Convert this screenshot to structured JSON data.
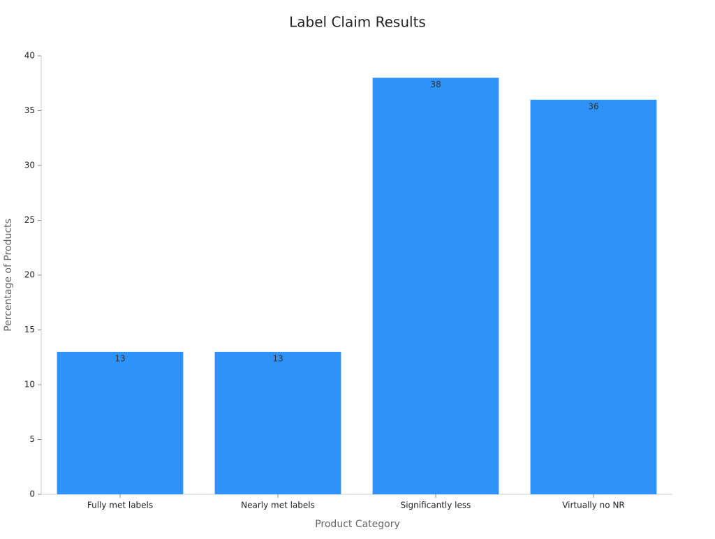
{
  "chart_data": {
    "type": "bar",
    "title": "Label Claim Results",
    "x_label": "Product Category",
    "y_label": "Percentage of Products",
    "categories": [
      "Fully met labels",
      "Nearly met labels",
      "Significantly less",
      "Virtually no NR"
    ],
    "values": [
      13,
      13,
      38,
      36
    ],
    "color": "#2e92f8",
    "ylim": [
      0,
      40
    ],
    "yticks": [
      0,
      5,
      10,
      15,
      20,
      25,
      30,
      35,
      40
    ],
    "grid": false
  }
}
